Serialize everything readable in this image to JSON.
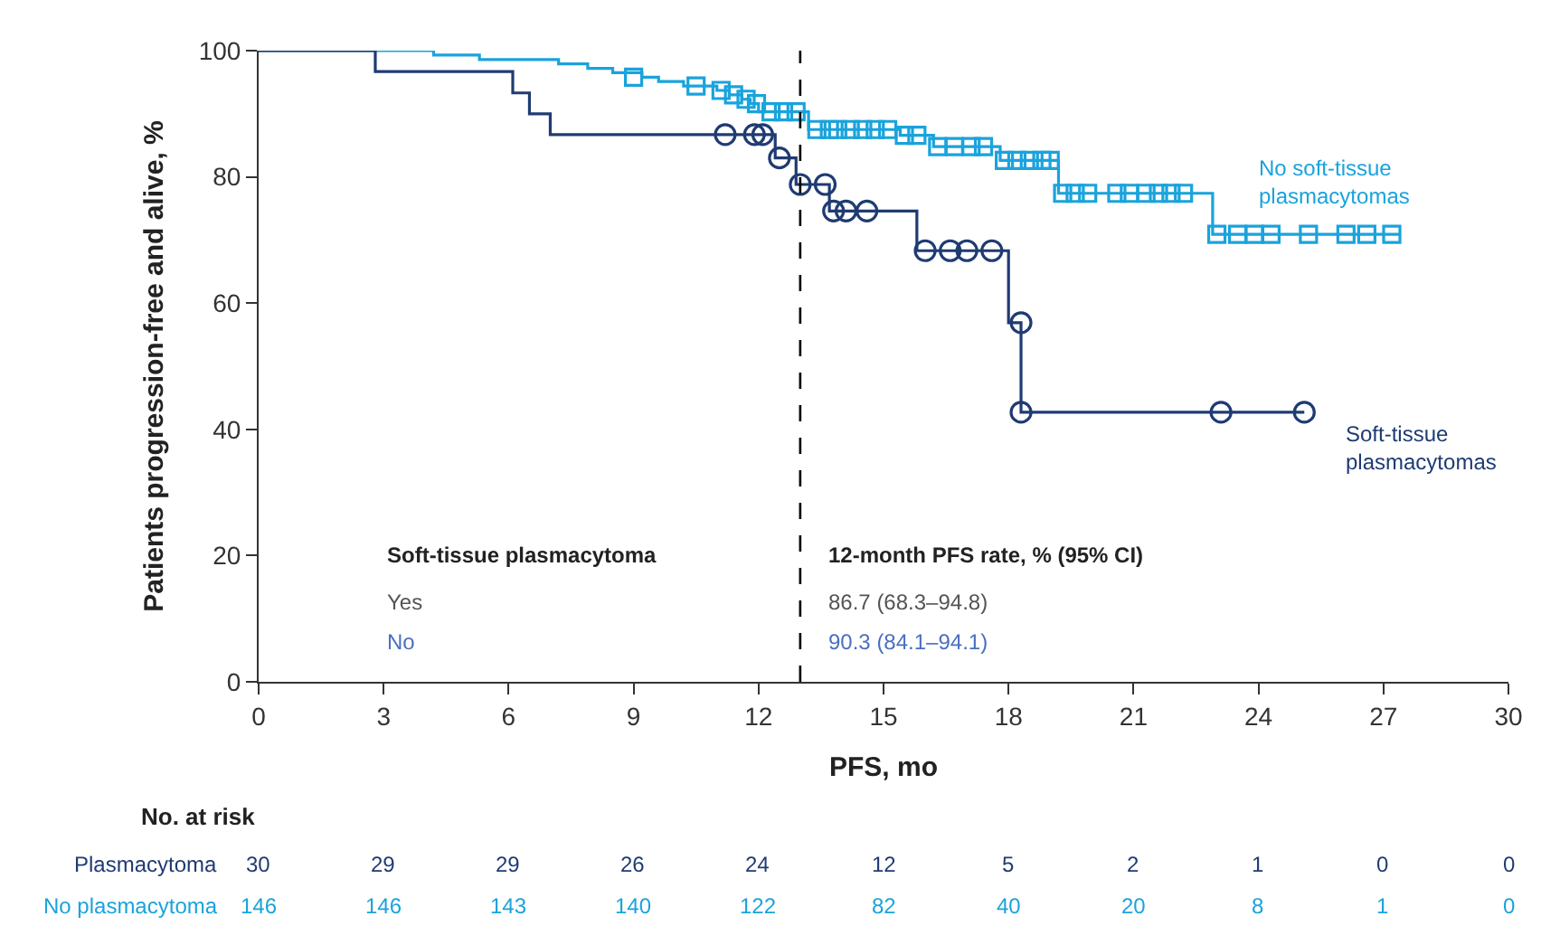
{
  "chart_data": {
    "type": "step",
    "xlabel": "PFS, mo",
    "ylabel": "Patients progression-free and alive, %",
    "xlim": [
      0,
      30
    ],
    "xticks": [
      0,
      3,
      6,
      9,
      12,
      15,
      18,
      21,
      24,
      27,
      30
    ],
    "ylim": [
      0,
      100
    ],
    "yticks": [
      0,
      20,
      40,
      60,
      80,
      100
    ],
    "line_style": "solid",
    "series": [
      {
        "name": "No soft-tissue plasmacytomas",
        "marker": "none",
        "color": "#1aa3dc",
        "x": [
          0,
          4.2,
          5.3,
          7.2,
          7.9,
          8.5,
          9.2,
          9.6,
          10.2,
          11.0,
          11.3,
          11.6,
          11.8,
          12.0,
          13.2,
          15.4,
          16.2,
          17.8,
          19.2,
          22.9,
          27.4
        ],
        "values": [
          100,
          99.3,
          98.6,
          97.9,
          97.2,
          96.5,
          95.8,
          95.1,
          94.4,
          93.7,
          93.0,
          92.3,
          91.6,
          90.3,
          87.5,
          86.6,
          84.8,
          82.6,
          77.4,
          70.9,
          70.9
        ]
      },
      {
        "name": "Soft-tissue plasmacytomas",
        "marker": "none",
        "color": "#1f3b73",
        "x": [
          0,
          2.8,
          6.1,
          6.5,
          7.0,
          12.4,
          12.9,
          13.7,
          15.8,
          18.0,
          18.3,
          25.1
        ],
        "values": [
          100,
          96.7,
          93.3,
          90,
          86.7,
          83.0,
          78.8,
          74.6,
          68.3,
          56.9,
          42.7,
          42.7
        ]
      },
      {
        "type": "scatter",
        "marker": "square",
        "color": "#1aa3dc",
        "x": [
          9.0,
          10.5,
          11.1,
          11.4,
          11.7,
          11.95,
          12.3,
          12.6,
          12.9,
          13.4,
          13.7,
          13.9,
          14.2,
          14.5,
          14.8,
          15.1,
          15.5,
          15.8,
          16.3,
          16.7,
          17.1,
          17.4,
          17.9,
          18.2,
          18.5,
          18.8,
          19.0,
          19.3,
          19.6,
          19.9,
          20.6,
          20.9,
          21.3,
          21.6,
          21.9,
          22.2,
          23.0,
          23.5,
          23.9,
          24.3,
          25.2,
          26.1,
          26.6,
          27.2
        ],
        "values": [
          95.8,
          94.4,
          93.7,
          93.0,
          92.3,
          91.6,
          90.3,
          90.3,
          90.3,
          87.5,
          87.5,
          87.5,
          87.5,
          87.5,
          87.5,
          87.5,
          86.6,
          86.6,
          84.8,
          84.8,
          84.8,
          84.8,
          82.6,
          82.6,
          82.6,
          82.6,
          82.6,
          77.4,
          77.4,
          77.4,
          77.4,
          77.4,
          77.4,
          77.4,
          77.4,
          77.4,
          70.9,
          70.9,
          70.9,
          70.9,
          70.9,
          70.9,
          70.9,
          70.9
        ]
      },
      {
        "type": "scatter",
        "marker": "circle",
        "color": "#1f3b73",
        "x": [
          11.2,
          11.9,
          12.1,
          12.5,
          13.0,
          13.6,
          13.8,
          14.1,
          14.6,
          16.0,
          16.6,
          17.0,
          17.6,
          18.3,
          18.3,
          23.1,
          25.1
        ],
        "values": [
          86.7,
          86.7,
          86.7,
          83.0,
          78.8,
          78.8,
          74.6,
          74.6,
          74.6,
          68.3,
          68.3,
          68.3,
          68.3,
          56.9,
          42.7,
          42.7,
          42.7
        ]
      }
    ],
    "ref_lines": [
      {
        "axis": "x",
        "value": 13,
        "color": "#000000",
        "line_style": "dashed"
      }
    ],
    "annotations": [
      "Soft-tissue plasmacytoma",
      "Yes",
      "No",
      "12-month PFS rate, % (95% CI)",
      "86.7 (68.3–94.8)",
      "90.3 (84.1–94.1)",
      "No. at risk",
      "Plasmacytoma",
      "30",
      "29",
      "29",
      "26",
      "24",
      "12",
      "5",
      "2",
      "1",
      "0",
      "0",
      "No plasmacytoma",
      "146",
      "146",
      "143",
      "140",
      "122",
      "82",
      "40",
      "20",
      "8",
      "1",
      "0"
    ]
  }
}
